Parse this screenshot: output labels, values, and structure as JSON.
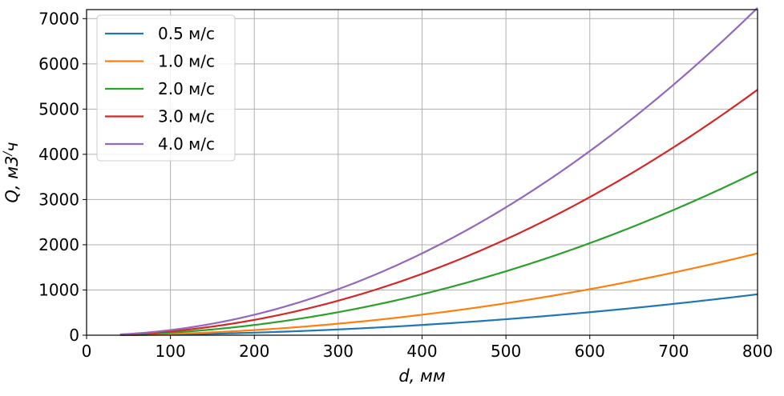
{
  "chart_data": {
    "type": "line",
    "title": "",
    "xlabel": "d, мм",
    "ylabel_main": "Q, м3",
    "ylabel_sup": "/ч",
    "xlim": [
      0,
      800
    ],
    "ylim": [
      0,
      7200
    ],
    "xticks": [
      0,
      100,
      200,
      300,
      400,
      500,
      600,
      700,
      800
    ],
    "yticks": [
      0,
      1000,
      2000,
      3000,
      4000,
      5000,
      6000,
      7000
    ],
    "grid": true,
    "legend_position": "top-left",
    "x_start": 40,
    "x_end": 800,
    "formula": "Q = v * (pi * d^2 / 4) * 3600, d in m",
    "series": [
      {
        "name": "0.5 м/с",
        "velocity": 0.5,
        "color": "#1f77b4",
        "values_at_ticks": {
          "100": 14,
          "200": 57,
          "300": 127,
          "400": 226,
          "500": 353,
          "600": 509,
          "700": 693,
          "800": 905
        }
      },
      {
        "name": "1.0 м/с",
        "velocity": 1.0,
        "color": "#ff7f0e",
        "values_at_ticks": {
          "100": 28,
          "200": 113,
          "300": 254,
          "400": 452,
          "500": 707,
          "600": 1018,
          "700": 1385,
          "800": 1810
        }
      },
      {
        "name": "2.0 м/с",
        "velocity": 2.0,
        "color": "#2ca02c",
        "values_at_ticks": {
          "100": 57,
          "200": 226,
          "300": 509,
          "400": 905,
          "500": 1414,
          "600": 2036,
          "700": 2771,
          "800": 3619
        }
      },
      {
        "name": "3.0 м/с",
        "velocity": 3.0,
        "color": "#d62728",
        "values_at_ticks": {
          "100": 85,
          "200": 339,
          "300": 763,
          "400": 1357,
          "500": 2121,
          "600": 3054,
          "700": 4156,
          "800": 5429
        }
      },
      {
        "name": "4.0 м/с",
        "velocity": 4.0,
        "color": "#9467bd",
        "values_at_ticks": {
          "100": 113,
          "200": 452,
          "300": 1018,
          "400": 1810,
          "500": 2827,
          "600": 4072,
          "700": 5542,
          "800": 7238
        }
      }
    ]
  }
}
